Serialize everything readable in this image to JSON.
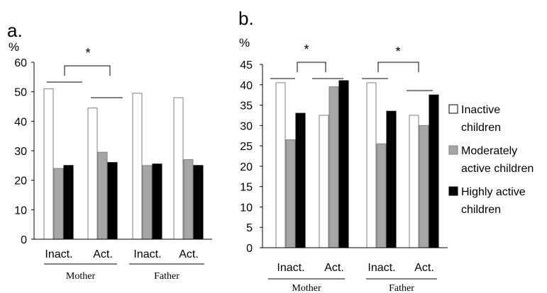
{
  "chart_data": [
    {
      "type": "bar",
      "panel_label": "a.",
      "ylabel": "%",
      "ylim": [
        0,
        60
      ],
      "yticks": [
        0,
        10,
        20,
        30,
        40,
        50,
        60
      ],
      "categories": [
        "Inact.",
        "Act.",
        "Inact.",
        "Act."
      ],
      "groups": [
        {
          "label": "Mother",
          "categories": [
            0,
            1
          ]
        },
        {
          "label": "Father",
          "categories": [
            2,
            3
          ]
        }
      ],
      "series": [
        {
          "name": "Inactive children",
          "values": [
            51,
            44.5,
            49.5,
            48
          ]
        },
        {
          "name": "Moderately active children",
          "values": [
            24,
            29.5,
            25,
            27
          ]
        },
        {
          "name": "Highly active children",
          "values": [
            25,
            26,
            25.5,
            25
          ]
        }
      ],
      "annotations": [
        {
          "text": "*",
          "between_categories": [
            0,
            1
          ]
        }
      ],
      "grid": false
    },
    {
      "type": "bar",
      "panel_label": "b.",
      "ylabel": "%",
      "ylim": [
        0,
        45
      ],
      "yticks": [
        0,
        5,
        10,
        15,
        20,
        25,
        30,
        35,
        40,
        45
      ],
      "categories": [
        "Inact.",
        "Act.",
        "Inact.",
        "Act."
      ],
      "groups": [
        {
          "label": "Mother",
          "categories": [
            0,
            1
          ]
        },
        {
          "label": "Father",
          "categories": [
            2,
            3
          ]
        }
      ],
      "series": [
        {
          "name": "Inactive children",
          "values": [
            40.5,
            32.5,
            40.5,
            32.5
          ]
        },
        {
          "name": "Moderately active children",
          "values": [
            26.5,
            39.5,
            25.5,
            30
          ]
        },
        {
          "name": "Highly active children",
          "values": [
            33,
            41,
            33.5,
            37.5
          ]
        }
      ],
      "annotations": [
        {
          "text": "*",
          "between_categories": [
            0,
            1
          ]
        },
        {
          "text": "*",
          "between_categories": [
            2,
            3
          ]
        }
      ],
      "legend": {
        "placement": "right",
        "entries": [
          {
            "lines": [
              "Inactive",
              "children"
            ],
            "color": "#ffffff"
          },
          {
            "lines": [
              "Moderately",
              "active children"
            ],
            "color": "#a6a6a6"
          },
          {
            "lines": [
              "Highly active",
              "children"
            ],
            "color": "#000000"
          }
        ]
      },
      "grid": false
    }
  ],
  "series_colors": [
    "#ffffff",
    "#a6a6a6",
    "#000000"
  ]
}
